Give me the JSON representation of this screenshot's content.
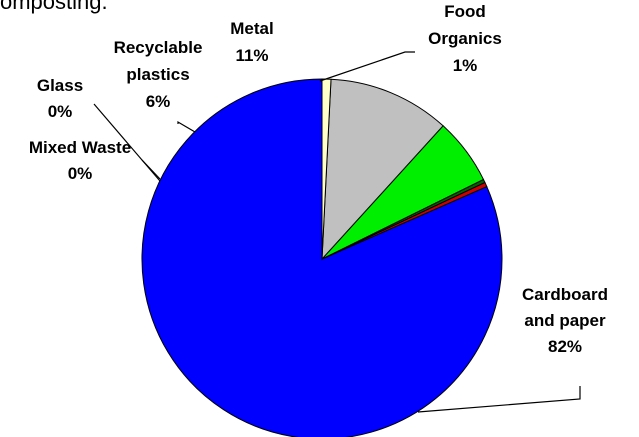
{
  "intro_text": "omposting.",
  "chart_data": {
    "type": "pie",
    "title": "",
    "slices": [
      {
        "label_lines": [
          "Cardboard",
          "and paper",
          "82%"
        ],
        "value": 82,
        "color": "#0000ff"
      },
      {
        "label_lines": [
          "Mixed Waste",
          "0%"
        ],
        "value": 0.4,
        "color": "#cc0000"
      },
      {
        "label_lines": [
          "Glass",
          "0%"
        ],
        "value": 0.3,
        "color": "#006400"
      },
      {
        "label_lines": [
          "Recyclable",
          "plastics",
          "6%"
        ],
        "value": 6,
        "color": "#00ee00"
      },
      {
        "label_lines": [
          "Metal",
          "11%"
        ],
        "value": 11,
        "color": "#c0c0c0"
      },
      {
        "label_lines": [
          "Food",
          "Organics",
          "1%"
        ],
        "value": 0.8,
        "color": "#ffffcc"
      }
    ],
    "slice_order": "counterclockwise from 12 o'clock",
    "slice_outline_color": "#000000"
  }
}
